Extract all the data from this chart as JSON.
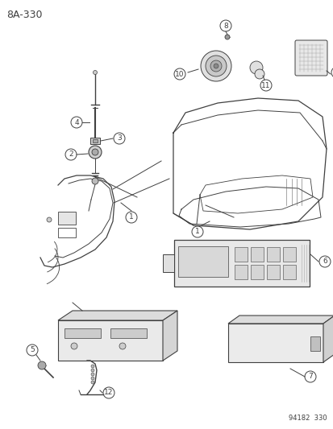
{
  "title": "8A-330",
  "footer": "94182  330",
  "bg_color": "#ffffff",
  "lc": "#404040",
  "lc2": "#555555",
  "title_fontsize": 9,
  "label_fontsize": 6.5,
  "footer_fontsize": 6,
  "figw": 4.14,
  "figh": 5.33,
  "dpi": 100
}
